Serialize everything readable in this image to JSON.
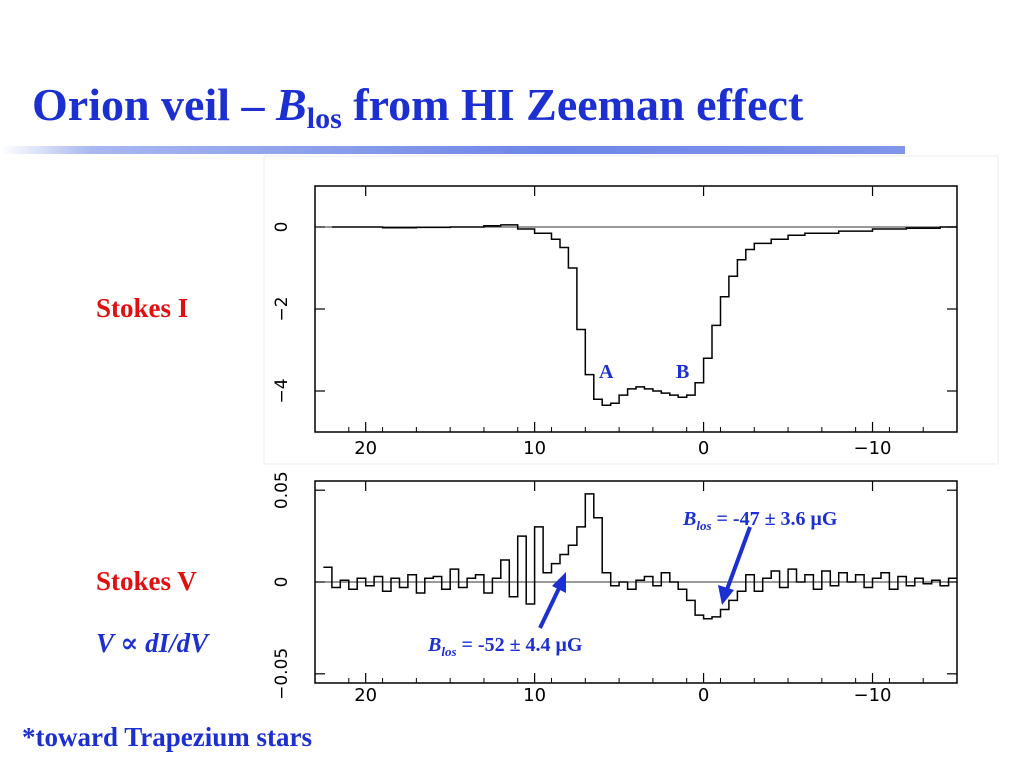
{
  "slide": {
    "title_prefix": "Orion veil – ",
    "title_symbol": "B",
    "title_subscript": "los",
    "title_suffix": " from HI Zeeman effect",
    "stokes_i_label": "Stokes I",
    "stokes_v_label": "Stokes V",
    "v_relation": "V ∝ dI/dV",
    "footnote": "*toward Trapezium stars"
  },
  "annotations": {
    "peak_a": "A",
    "peak_b": "B",
    "right_symbol": "B",
    "right_sub": "los",
    "right_value": " = -47 ± 3.6 μG",
    "left_symbol": "B",
    "left_sub": "los",
    "left_value": " = -52 ± 4.4 μG"
  },
  "colors": {
    "title": "#1c2fd0",
    "stokes_labels": "#e01010",
    "accent_bar": "#6e86e6",
    "arrows": "#1c2fd0"
  },
  "chart_data": [
    {
      "type": "line",
      "style": "step",
      "xlim": [
        23,
        -15
      ],
      "ylim": [
        -5,
        1
      ],
      "xticks": [
        20,
        10,
        0,
        -10
      ],
      "yticks": [
        0,
        -2,
        -4
      ],
      "x": [
        22,
        21,
        20,
        19,
        18,
        17,
        16,
        15,
        14,
        13,
        12,
        11,
        10,
        9,
        8.5,
        8,
        7.5,
        7,
        6.5,
        6,
        5.5,
        5,
        4.5,
        4,
        3.5,
        3,
        2.5,
        2,
        1.5,
        1,
        0.5,
        0,
        -0.5,
        -1,
        -1.5,
        -2,
        -2.5,
        -3,
        -4,
        -5,
        -6,
        -8,
        -10,
        -12,
        -14
      ],
      "y": [
        0,
        0,
        0,
        -0.02,
        -0.02,
        -0.01,
        -0.01,
        0,
        0,
        0.03,
        0.05,
        -0.05,
        -0.15,
        -0.3,
        -0.5,
        -1.0,
        -2.5,
        -3.6,
        -4.2,
        -4.35,
        -4.3,
        -4.1,
        -3.95,
        -3.9,
        -3.95,
        -4.0,
        -4.05,
        -4.1,
        -4.15,
        -4.1,
        -3.8,
        -3.2,
        -2.4,
        -1.7,
        -1.2,
        -0.8,
        -0.55,
        -0.4,
        -0.3,
        -0.2,
        -0.15,
        -0.1,
        -0.05,
        -0.03,
        0
      ]
    },
    {
      "type": "line",
      "style": "step",
      "xlim": [
        23,
        -15
      ],
      "ylim": [
        -0.055,
        0.055
      ],
      "xticks": [
        20,
        10,
        0,
        -10
      ],
      "yticks": [
        0.05,
        0,
        -0.05
      ],
      "x": [
        22.5,
        22,
        21.5,
        21,
        20.5,
        20,
        19.5,
        19,
        18.5,
        18,
        17.5,
        17,
        16.5,
        16,
        15.5,
        15,
        14.5,
        14,
        13.5,
        13,
        12.5,
        12,
        11.5,
        11,
        10.5,
        10,
        9.5,
        9,
        8.5,
        8,
        7.5,
        7,
        6.5,
        6,
        5.5,
        5,
        4.5,
        4,
        3.5,
        3,
        2.5,
        2,
        1.5,
        1,
        0.5,
        0,
        -0.5,
        -1,
        -1.5,
        -2,
        -2.5,
        -3,
        -3.5,
        -4,
        -4.5,
        -5,
        -5.5,
        -6,
        -6.5,
        -7,
        -7.5,
        -8,
        -8.5,
        -9,
        -9.5,
        -10,
        -10.5,
        -11,
        -11.5,
        -12,
        -12.5,
        -13,
        -13.5,
        -14,
        -14.5
      ],
      "y": [
        0.008,
        -0.003,
        0.001,
        -0.004,
        0.002,
        -0.002,
        0.003,
        -0.005,
        0.002,
        -0.003,
        0.004,
        -0.006,
        0.002,
        0.003,
        -0.004,
        0.007,
        -0.003,
        0.002,
        0.004,
        -0.006,
        0.002,
        0.012,
        -0.008,
        0.025,
        -0.012,
        0.03,
        0.005,
        0.01,
        0.015,
        0.02,
        0.03,
        0.048,
        0.035,
        0.005,
        -0.002,
        0.0,
        -0.004,
        0.001,
        0.003,
        -0.002,
        0.005,
        0.0,
        -0.004,
        -0.01,
        -0.018,
        -0.02,
        -0.019,
        -0.015,
        -0.01,
        -0.005,
        0.004,
        -0.005,
        0.002,
        0.006,
        -0.003,
        0.007,
        0.0,
        0.004,
        -0.004,
        0.006,
        -0.002,
        0.005,
        0.0,
        0.004,
        -0.003,
        0.002,
        0.005,
        -0.004,
        0.003,
        -0.002,
        0.002,
        -0.001,
        0.001,
        -0.002,
        0.002
      ]
    }
  ]
}
